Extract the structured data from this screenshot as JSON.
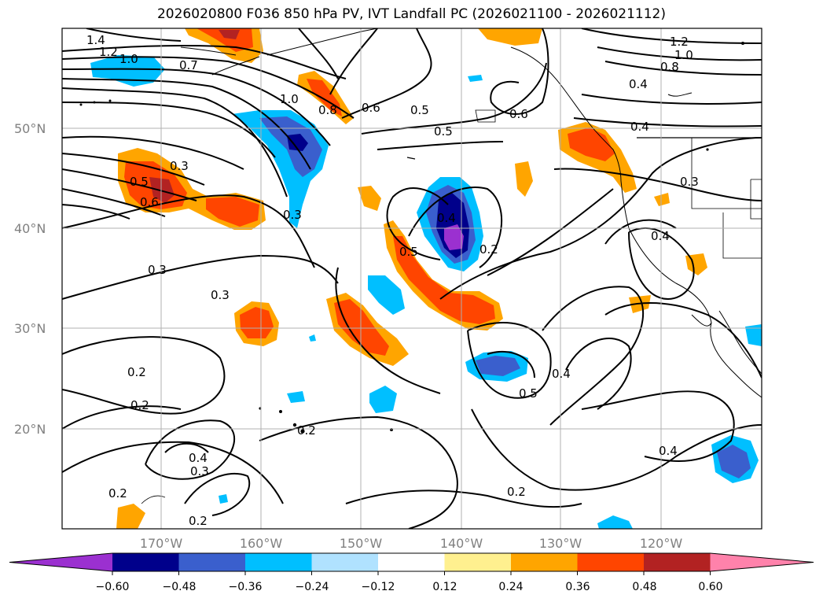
{
  "title": "2026020800 F036 850 hPa PV, IVT Landfall PC (2026021100 - 2026021112)",
  "lat_labels": [
    "50°N",
    "40°N",
    "30°N",
    "20°N"
  ],
  "lon_labels": [
    "170°W",
    "160°W",
    "150°W",
    "140°W",
    "130°W",
    "120°W"
  ],
  "colorbar": {
    "colors": [
      "#9b30d0",
      "#00008b",
      "#3a5fcd",
      "#00bfff",
      "#b0e2ff",
      "#ffffff",
      "#fff08f",
      "#ffa500",
      "#ff4500",
      "#b22222",
      "#ff82ab"
    ],
    "tick_labels": [
      "−0.60",
      "−0.48",
      "−0.36",
      "−0.24",
      "−0.12",
      "0.12",
      "0.24",
      "0.36",
      "0.48",
      "0.60"
    ]
  },
  "contour_labels": [
    "1.4",
    "1.2",
    "1.0",
    "0.7",
    "1.0",
    "0.8",
    "0.6",
    "0.5",
    "0.5",
    "0.6",
    "1.2",
    "1.0",
    "0.8",
    "0.4",
    "0.4",
    "0.3",
    "0.5",
    "0.6",
    "0.3",
    "0.4",
    "0.3",
    "0.4",
    "0.5",
    "0.2",
    "0.3",
    "0.3",
    "0.2",
    "0.2",
    "0.4",
    "0.4",
    "0.3",
    "0.5",
    "0.2",
    "0.2",
    "0.2",
    "0.4",
    "0.2"
  ]
}
